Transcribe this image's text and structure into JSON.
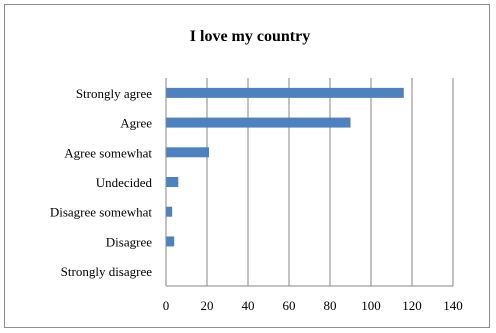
{
  "chart_data": {
    "type": "bar",
    "orientation": "horizontal",
    "title": "I love my country",
    "categories": [
      "Strongly agree",
      "Agree",
      "Agree somewhat",
      "Undecided",
      "Disagree somewhat",
      "Disagree",
      "Strongly disagree"
    ],
    "values": [
      116,
      90,
      21,
      6,
      3,
      4,
      0
    ],
    "xlim": [
      0,
      140
    ],
    "xticks": [
      0,
      20,
      40,
      60,
      80,
      100,
      120,
      140
    ],
    "grid": "vertical",
    "legend": "none",
    "bar_color": "#4f81bd",
    "gridline_color": "#868686"
  }
}
